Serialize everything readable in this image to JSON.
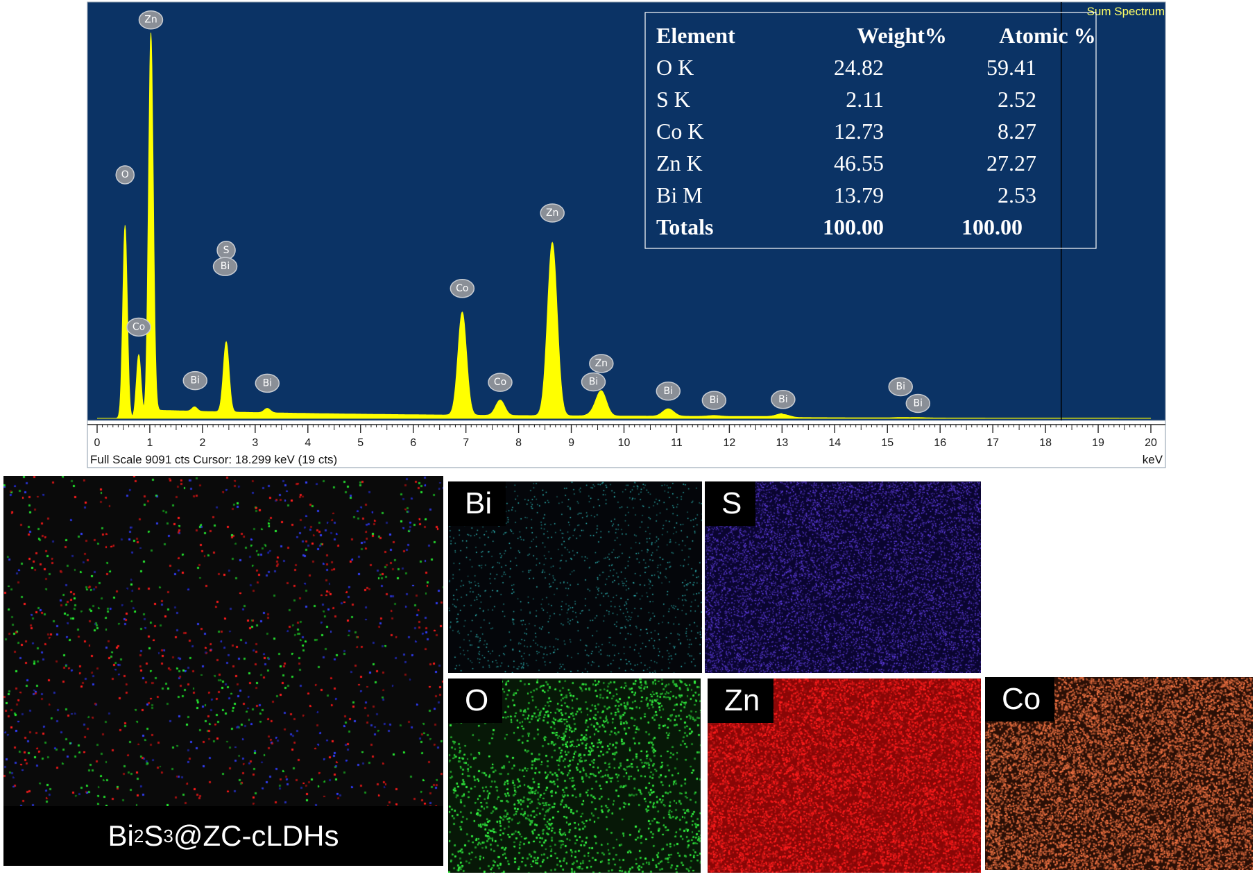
{
  "chart_data": {
    "type": "line",
    "title": "Sum Spectrum",
    "xunit": "keV",
    "xlim": [
      0,
      20
    ],
    "xticks": [
      0,
      1,
      2,
      3,
      4,
      5,
      6,
      7,
      8,
      9,
      10,
      11,
      12,
      13,
      14,
      15,
      16,
      17,
      18,
      19,
      20
    ],
    "full_scale_cts": 9091,
    "status_line": "Full Scale 9091 cts  Cursor: 18.299 keV (19 cts)",
    "cursor_kev": 18.299,
    "colors": {
      "background": "#0b3365",
      "spectrum": "#ffff00",
      "text": "#ffff66"
    },
    "peaks": [
      {
        "element": "O",
        "kev": 0.53,
        "cts": 4400
      },
      {
        "element": "Co",
        "kev": 0.79,
        "cts": 1450
      },
      {
        "element": "Zn",
        "kev": 1.02,
        "cts": 8600
      },
      {
        "element": "Bi",
        "kev": 1.85,
        "cts": 100
      },
      {
        "element": "S",
        "kev": 2.45,
        "cts": 1600
      },
      {
        "element": "Bi",
        "kev": 2.45,
        "cts": 0
      },
      {
        "element": "Bi",
        "kev": 3.23,
        "cts": 100
      },
      {
        "element": "Co",
        "kev": 6.93,
        "cts": 2350
      },
      {
        "element": "Co",
        "kev": 7.65,
        "cts": 350
      },
      {
        "element": "Zn",
        "kev": 8.64,
        "cts": 3950
      },
      {
        "element": "Bi",
        "kev": 9.42,
        "cts": 60
      },
      {
        "element": "Zn",
        "kev": 9.57,
        "cts": 560
      },
      {
        "element": "Bi",
        "kev": 10.84,
        "cts": 170
      },
      {
        "element": "Bi",
        "kev": 11.71,
        "cts": 20
      },
      {
        "element": "Bi",
        "kev": 13.02,
        "cts": 70
      },
      {
        "element": "Bi",
        "kev": 15.25,
        "cts": 10
      },
      {
        "element": "Bi",
        "kev": 15.58,
        "cts": 10
      }
    ],
    "peak_labels": [
      {
        "text": "O",
        "kev": 0.53,
        "cts": 5550
      },
      {
        "text": "Co",
        "kev": 0.79,
        "cts": 2080
      },
      {
        "text": "Zn",
        "kev": 1.02,
        "cts": 9080
      },
      {
        "text": "Bi",
        "kev": 1.86,
        "cts": 860
      },
      {
        "text": "S",
        "kev": 2.45,
        "cts": 3830
      },
      {
        "text": "Bi",
        "kev": 2.43,
        "cts": 3460
      },
      {
        "text": "Bi",
        "kev": 3.23,
        "cts": 800
      },
      {
        "text": "Co",
        "kev": 6.93,
        "cts": 2960
      },
      {
        "text": "Co",
        "kev": 7.65,
        "cts": 820
      },
      {
        "text": "Zn",
        "kev": 8.64,
        "cts": 4680
      },
      {
        "text": "Bi",
        "kev": 9.42,
        "cts": 830
      },
      {
        "text": "Zn",
        "kev": 9.57,
        "cts": 1250
      },
      {
        "text": "Bi",
        "kev": 10.84,
        "cts": 620
      },
      {
        "text": "Bi",
        "kev": 11.71,
        "cts": 410
      },
      {
        "text": "Bi",
        "kev": 13.02,
        "cts": 430
      },
      {
        "text": "Bi",
        "kev": 15.25,
        "cts": 720
      },
      {
        "text": "Bi",
        "kev": 15.58,
        "cts": 340
      }
    ]
  },
  "composition_table": {
    "headers": [
      "Element",
      "Weight%",
      "Atomic %"
    ],
    "rows": [
      [
        "O K",
        "24.82",
        "59.41"
      ],
      [
        "S K",
        "2.11",
        "2.52"
      ],
      [
        "Co K",
        "12.73",
        "8.27"
      ],
      [
        "Zn K",
        "46.55",
        "27.27"
      ],
      [
        "Bi M",
        "13.79",
        "2.53"
      ]
    ],
    "totals": [
      "Totals",
      "100.00",
      "100.00"
    ]
  },
  "maps": [
    {
      "element": "Bi",
      "label": "Bi",
      "color": "#2fb8b8",
      "background": "#04060a"
    },
    {
      "element": "S",
      "label": "S",
      "color": "#5b3bd8",
      "background": "#0a0530"
    },
    {
      "element": "O",
      "label": "O",
      "color": "#2ed63a",
      "background": "#071807"
    },
    {
      "element": "Zn",
      "label": "Zn",
      "color": "#e81a1a",
      "background": "#8a0606"
    },
    {
      "element": "Co",
      "label": "Co",
      "color": "#d2643a",
      "background": "#2a0f06"
    }
  ],
  "composite_caption": {
    "base": "Bi",
    "sub1": "2",
    "mid": "S",
    "sub2": "3",
    "rest": "@ZC-cLDHs"
  }
}
